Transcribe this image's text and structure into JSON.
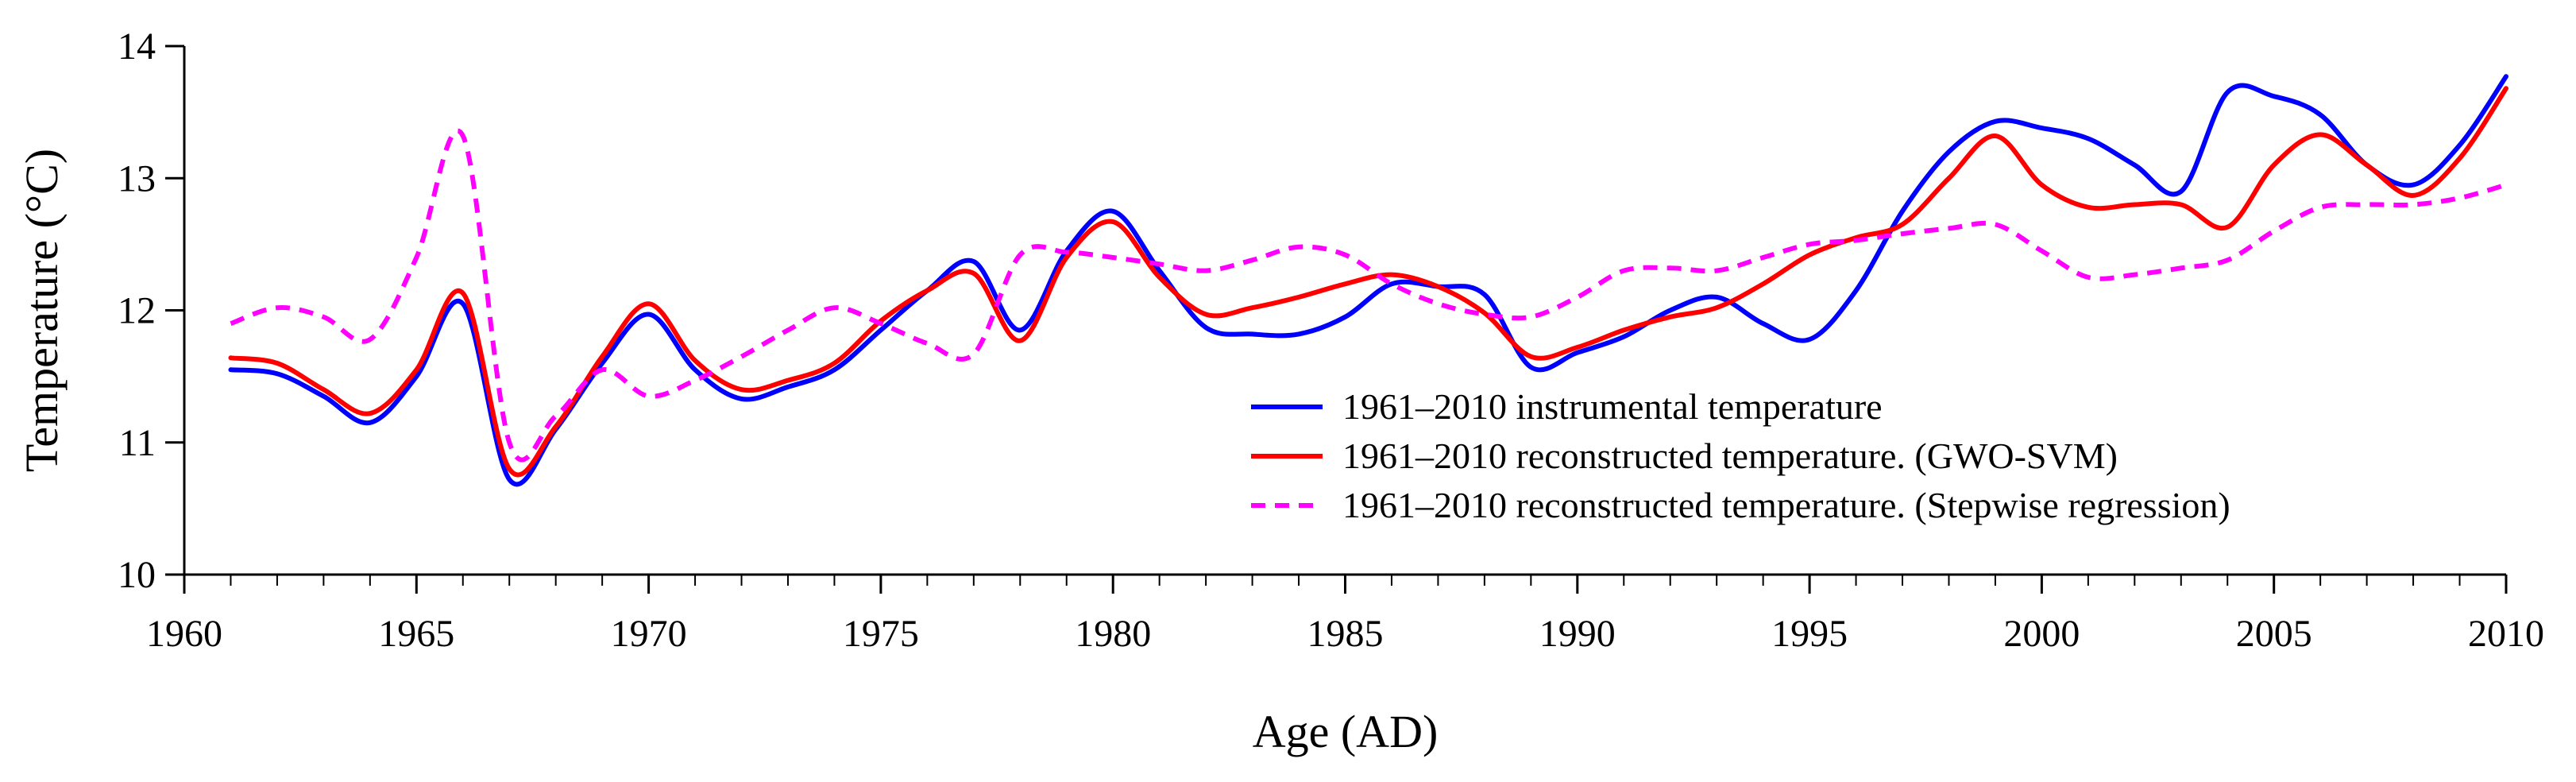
{
  "chart_data": {
    "type": "line",
    "title": "",
    "xlabel": "Age (AD)",
    "ylabel": "Temperature (°C)",
    "xlim": [
      1960,
      2010
    ],
    "ylim": [
      10,
      14
    ],
    "xticks": [
      1960,
      1965,
      1970,
      1975,
      1980,
      1985,
      1990,
      1995,
      2000,
      2005,
      2010
    ],
    "yticks": [
      10,
      11,
      12,
      13,
      14
    ],
    "legend_position": "lower-right",
    "x": [
      1961,
      1962,
      1963,
      1964,
      1965,
      1966,
      1967,
      1968,
      1969,
      1970,
      1971,
      1972,
      1973,
      1974,
      1975,
      1976,
      1977,
      1978,
      1979,
      1980,
      1981,
      1982,
      1983,
      1984,
      1985,
      1986,
      1987,
      1988,
      1989,
      1990,
      1991,
      1992,
      1993,
      1994,
      1995,
      1996,
      1997,
      1998,
      1999,
      2000,
      2001,
      2002,
      2003,
      2004,
      2005,
      2006,
      2007,
      2008,
      2009,
      2010
    ],
    "series": [
      {
        "name": "1961–2010 instrumental temperature",
        "color": "#0000ff",
        "dash": "solid",
        "values": [
          11.55,
          11.52,
          11.35,
          11.15,
          11.5,
          12.05,
          10.72,
          11.1,
          11.6,
          11.97,
          11.55,
          11.33,
          11.42,
          11.55,
          11.85,
          12.15,
          12.37,
          11.85,
          12.45,
          12.75,
          12.3,
          11.87,
          11.82,
          11.82,
          11.95,
          12.2,
          12.18,
          12.12,
          11.57,
          11.68,
          11.8,
          12.0,
          12.1,
          11.9,
          11.78,
          12.15,
          12.75,
          13.2,
          13.43,
          13.38,
          13.3,
          13.1,
          12.9,
          13.65,
          13.62,
          13.48,
          13.1,
          12.95,
          13.25,
          13.77
        ]
      },
      {
        "name": "1961–2010 reconstructed temperature. (GWO-SVM)",
        "color": "#ff0000",
        "dash": "solid",
        "values": [
          11.64,
          11.6,
          11.4,
          11.22,
          11.55,
          12.13,
          10.8,
          11.12,
          11.65,
          12.05,
          11.62,
          11.4,
          11.47,
          11.6,
          11.92,
          12.15,
          12.28,
          11.77,
          12.4,
          12.67,
          12.25,
          11.97,
          12.02,
          12.1,
          12.2,
          12.27,
          12.18,
          11.98,
          11.65,
          11.72,
          11.85,
          11.95,
          12.02,
          12.2,
          12.42,
          12.55,
          12.65,
          13.0,
          13.32,
          12.95,
          12.78,
          12.8,
          12.8,
          12.63,
          13.1,
          13.33,
          13.1,
          12.87,
          13.15,
          13.68
        ]
      },
      {
        "name": "1961–2010 reconstructed temperature. (Stepwise regression)",
        "color": "#ff00ff",
        "dash": "dashed",
        "values": [
          11.9,
          12.02,
          11.95,
          11.78,
          12.4,
          13.32,
          11.0,
          11.2,
          11.55,
          11.35,
          11.47,
          11.65,
          11.85,
          12.02,
          11.9,
          11.75,
          11.67,
          12.42,
          12.44,
          12.4,
          12.35,
          12.3,
          12.38,
          12.48,
          12.42,
          12.2,
          12.05,
          11.97,
          11.95,
          12.1,
          12.3,
          12.32,
          12.3,
          12.4,
          12.5,
          12.53,
          12.58,
          12.62,
          12.65,
          12.45,
          12.25,
          12.27,
          12.32,
          12.38,
          12.6,
          12.78,
          12.8,
          12.8,
          12.85,
          12.95
        ]
      }
    ]
  }
}
